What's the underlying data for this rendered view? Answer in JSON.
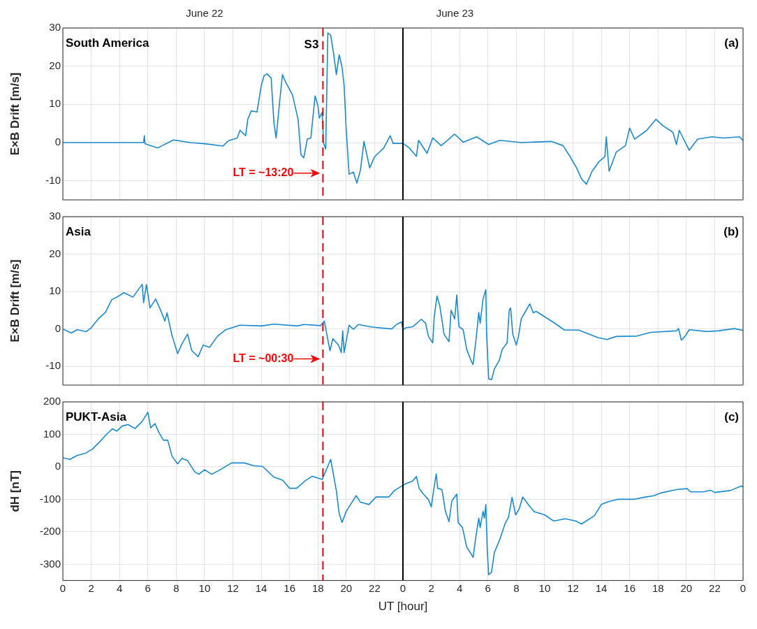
{
  "chart_data": [
    {
      "type": "line",
      "title": "South America",
      "ylabel": "E×B Drift [m/s]",
      "color": "#1a8ad0",
      "x": [
        "--06-22T00:00",
        "--06-22T05:42",
        "--06-22T05:45",
        "--06-22T05:48",
        "--06-22T06:42",
        "--06-22T07:48",
        "--06-22T09:00",
        "--06-22T10:00",
        "--06-22T11:18",
        "--06-22T11:42",
        "--06-22T12:18",
        "--06-22T12:30",
        "--06-22T12:54",
        "--06-22T13:03",
        "--06-22T13:18",
        "--06-22T13:42",
        "--06-22T14:00",
        "--06-22T14:12",
        "--06-22T14:24",
        "--06-22T14:42",
        "--06-22T14:54",
        "--06-22T15:03",
        "--06-22T15:18",
        "--06-22T15:30",
        "--06-22T15:42",
        "--06-22T16:12",
        "--06-22T16:36",
        "--06-22T16:48",
        "--06-22T17:00",
        "--06-22T17:15",
        "--06-22T17:30",
        "--06-22T17:48",
        "--06-22T18:00",
        "--06-22T18:06",
        "--06-22T18:18",
        "--06-22T18:24",
        "--06-22T18:33",
        "--06-22T18:42",
        "--06-22T18:54",
        "--06-22T19:06",
        "--06-22T19:18",
        "--06-22T19:30",
        "--06-22T19:42",
        "--06-22T19:51",
        "--06-22T20:00",
        "--06-22T20:12",
        "--06-22T20:30",
        "--06-22T20:45",
        "--06-22T21:00",
        "--06-22T21:15",
        "--06-22T21:39",
        "--06-22T22:00",
        "--06-22T22:39",
        "--06-22T23:06",
        "--06-22T23:18",
        "--06-23T00:00",
        "--06-23T00:27",
        "--06-23T00:57",
        "--06-23T01:06",
        "--06-23T01:42",
        "--06-23T02:06",
        "--06-23T02:42",
        "--06-23T03:39",
        "--06-23T04:15",
        "--06-23T05:12",
        "--06-23T06:03",
        "--06-23T06:51",
        "--06-23T08:21",
        "--06-23T10:27",
        "--06-23T11:18",
        "--06-23T11:48",
        "--06-23T12:15",
        "--06-23T12:36",
        "--06-23T12:57",
        "--06-23T13:21",
        "--06-23T13:51",
        "--06-23T14:15",
        "--06-23T14:21",
        "--06-23T14:33",
        "--06-23T15:03",
        "--06-23T15:42",
        "--06-23T16:00",
        "--06-23T16:21",
        "--06-23T17:12",
        "--06-23T17:51",
        "--06-23T18:21",
        "--06-23T19:03",
        "--06-23T19:18",
        "--06-23T19:30",
        "--06-23T20:12",
        "--06-23T20:48",
        "--06-23T21:48",
        "--06-23T22:36",
        "--06-23T23:45",
        "--06-24T00:00"
      ],
      "values": [
        0,
        0,
        1.8,
        -0.3,
        -1.4,
        0.7,
        0,
        -0.3,
        -0.9,
        0.5,
        1.2,
        3.2,
        1.8,
        6.1,
        8.3,
        8,
        14.9,
        17.5,
        18,
        16.9,
        5,
        1.2,
        10.8,
        17.8,
        16,
        12.5,
        6.1,
        -3.1,
        -4,
        0.9,
        1.2,
        12.2,
        9.6,
        6.4,
        7.9,
        -0.2,
        -1.7,
        28.7,
        28.1,
        23.5,
        17.8,
        23,
        19.8,
        14.9,
        3.2,
        -8.3,
        -7.7,
        -10.6,
        -7.2,
        0.3,
        -6.6,
        -3.7,
        -1.4,
        1.8,
        -0.2,
        -0.2,
        -1.4,
        -3.6,
        0.6,
        -2.8,
        1.2,
        -0.8,
        2.2,
        0.1,
        1.5,
        -0.5,
        0.6,
        0,
        0.3,
        -0.8,
        -3.7,
        -6.6,
        -9.5,
        -10.9,
        -7.5,
        -4.9,
        -3.7,
        1.5,
        -7.5,
        -2.5,
        -0.8,
        3.8,
        0.9,
        3.2,
        6.1,
        4.4,
        2.7,
        -0.5,
        3.2,
        -2,
        0.9,
        1.5,
        1.2,
        1.5,
        0.5
      ],
      "xlim": [
        "--06-22T00:00",
        "--06-24T00:00"
      ],
      "xticks": [
        {
          "value": "--06-22T00:00",
          "label": null
        },
        {
          "value": "--06-22T02:00",
          "label": null
        },
        {
          "value": "--06-22T04:00",
          "label": null
        },
        {
          "value": "--06-22T06:00",
          "label": null
        },
        {
          "value": "--06-22T08:00",
          "label": null
        },
        {
          "value": "--06-22T10:00",
          "label": null
        },
        {
          "value": "--06-22T12:00",
          "label": null
        },
        {
          "value": "--06-22T14:00",
          "label": null
        },
        {
          "value": "--06-22T16:00",
          "label": null
        },
        {
          "value": "--06-22T18:00",
          "label": null
        },
        {
          "value": "--06-22T20:00",
          "label": null
        },
        {
          "value": "--06-22T22:00",
          "label": null
        },
        {
          "value": "--06-23T00:00",
          "label": null
        },
        {
          "value": "--06-23T02:00",
          "label": null
        },
        {
          "value": "--06-23T04:00",
          "label": null
        },
        {
          "value": "--06-23T06:00",
          "label": null
        },
        {
          "value": "--06-23T08:00",
          "label": null
        },
        {
          "value": "--06-23T10:00",
          "label": null
        },
        {
          "value": "--06-23T12:00",
          "label": null
        },
        {
          "value": "--06-23T14:00",
          "label": null
        },
        {
          "value": "--06-23T16:00",
          "label": null
        },
        {
          "value": "--06-23T18:00",
          "label": null
        },
        {
          "value": "--06-23T20:00",
          "label": null
        },
        {
          "value": "--06-23T22:00",
          "label": null
        },
        {
          "value": "--06-24T00:00",
          "label": null
        }
      ],
      "x2lim": [
        "--06-22T00:00",
        "--06-24T00:00"
      ],
      "x2ticks": [
        {
          "value": "--06-22T10:00",
          "label": "June 22"
        },
        {
          "value": "--06-23T03:40",
          "label": "June 23"
        }
      ],
      "ylim": [
        -15,
        30
      ],
      "yticks": [
        -10,
        0,
        10,
        20,
        30
      ],
      "ref_lines": [
        {
          "axis": "x",
          "value": "--06-22T18:21",
          "color": "#ff0000",
          "line_style": "dashed"
        },
        {
          "axis": "x",
          "value": "--06-23T00:00",
          "color": "#000000",
          "line_style": "solid"
        }
      ],
      "annotations": [
        "(a)",
        "S3",
        {
          "text": "LT = ~13:20",
          "x": "--06-22T18:21",
          "y": -8
        }
      ],
      "grid": true,
      "tick_labels": "y"
    },
    {
      "type": "line",
      "title": "Asia",
      "ylabel": "E×B Drift [m/s]",
      "color": "#1a8ad0",
      "x": [
        "--06-22T00:00",
        "--06-22T00:36",
        "--06-22T01:00",
        "--06-22T01:39",
        "--06-22T02:00",
        "--06-22T02:30",
        "--06-22T03:00",
        "--06-22T03:27",
        "--06-22T03:57",
        "--06-22T04:18",
        "--06-22T04:57",
        "--06-22T05:30",
        "--06-22T05:36",
        "--06-22T05:42",
        "--06-22T05:54",
        "--06-22T06:09",
        "--06-22T06:33",
        "--06-22T06:54",
        "--06-22T07:12",
        "--06-22T07:21",
        "--06-22T07:42",
        "--06-22T08:06",
        "--06-22T08:24",
        "--06-22T08:48",
        "--06-22T09:06",
        "--06-22T09:33",
        "--06-22T09:54",
        "--06-22T10:21",
        "--06-22T10:54",
        "--06-22T11:30",
        "--06-22T12:30",
        "--06-22T14:00",
        "--06-22T14:54",
        "--06-22T16:33",
        "--06-22T17:00",
        "--06-22T18:12",
        "--06-22T18:27",
        "--06-22T18:51",
        "--06-22T19:03",
        "--06-22T19:27",
        "--06-22T19:39",
        "--06-22T19:45",
        "--06-22T19:51",
        "--06-22T20:12",
        "--06-22T20:30",
        "--06-22T20:51",
        "--06-22T21:48",
        "--06-22T23:12",
        "--06-22T23:33",
        "--06-22T23:54",
        "--06-23T00:00",
        "--06-23T00:12",
        "--06-23T00:42",
        "--06-23T01:18",
        "--06-23T01:36",
        "--06-23T01:48",
        "--06-23T02:06",
        "--06-23T02:12",
        "--06-23T02:24",
        "--06-23T02:36",
        "--06-23T02:54",
        "--06-23T03:15",
        "--06-23T03:24",
        "--06-23T03:39",
        "--06-23T03:48",
        "--06-23T03:57",
        "--06-23T04:15",
        "--06-23T04:30",
        "--06-23T04:48",
        "--06-23T04:57",
        "--06-23T05:09",
        "--06-23T05:21",
        "--06-23T05:27",
        "--06-23T05:39",
        "--06-23T05:51",
        "--06-23T05:54",
        "--06-23T05:57",
        "--06-23T06:03",
        "--06-23T06:15",
        "--06-23T06:27",
        "--06-23T06:48",
        "--06-23T07:00",
        "--06-23T07:21",
        "--06-23T07:30",
        "--06-23T07:36",
        "--06-23T07:45",
        "--06-23T08:00",
        "--06-23T08:09",
        "--06-23T08:21",
        "--06-23T08:39",
        "--06-23T08:57",
        "--06-23T09:12",
        "--06-23T09:24",
        "--06-23T10:36",
        "--06-23T11:24",
        "--06-23T12:24",
        "--06-23T13:45",
        "--06-23T14:24",
        "--06-23T15:03",
        "--06-23T16:30",
        "--06-23T17:30",
        "--06-23T19:18",
        "--06-23T19:27",
        "--06-23T19:39",
        "--06-23T19:54",
        "--06-23T20:12",
        "--06-23T21:27",
        "--06-23T22:15",
        "--06-23T23:24",
        "--06-24T00:00"
      ],
      "values": [
        0,
        -1.1,
        -0.2,
        -0.7,
        0.3,
        2.7,
        4.4,
        7.8,
        8.8,
        9.7,
        8.5,
        11.4,
        11.9,
        7.0,
        11.9,
        5.6,
        8.0,
        5,
        2.1,
        4.3,
        -1.7,
        -6.6,
        -4,
        -1.4,
        -5.8,
        -7.4,
        -4.3,
        -4.9,
        -2,
        -0.2,
        1,
        0.8,
        1.3,
        0.8,
        1.2,
        0.9,
        2.1,
        -5.8,
        -2.6,
        -4.3,
        -6.3,
        -0.5,
        -6.3,
        1,
        -0.1,
        1.2,
        0.5,
        0,
        1.2,
        1.9,
        -0.2,
        0.3,
        0.6,
        2.6,
        1.5,
        -2,
        -3.7,
        3,
        8.8,
        6.2,
        -1.4,
        -3.4,
        5,
        2.7,
        9.1,
        0.6,
        -0.2,
        -5.5,
        -8.4,
        -9.5,
        -3.1,
        4.4,
        1.5,
        7.9,
        10.5,
        -0.8,
        -5.5,
        -13.3,
        -13.6,
        -10.7,
        -8.4,
        -5.5,
        -3.7,
        5,
        5.6,
        -1.4,
        -4.3,
        -2,
        2.7,
        4.7,
        6.7,
        4.3,
        4.7,
        1.8,
        -0.3,
        -0.3,
        -2.3,
        -2.8,
        -2,
        -1.9,
        -0.9,
        -0.5,
        0.1,
        -3,
        -2,
        -0.2,
        -0.7,
        -0.5,
        0.1,
        -0.4
      ],
      "xlim": [
        "--06-22T00:00",
        "--06-24T00:00"
      ],
      "xticks": [
        {
          "value": "--06-22T00:00",
          "label": null
        },
        {
          "value": "--06-22T02:00",
          "label": null
        },
        {
          "value": "--06-22T04:00",
          "label": null
        },
        {
          "value": "--06-22T06:00",
          "label": null
        },
        {
          "value": "--06-22T08:00",
          "label": null
        },
        {
          "value": "--06-22T10:00",
          "label": null
        },
        {
          "value": "--06-22T12:00",
          "label": null
        },
        {
          "value": "--06-22T14:00",
          "label": null
        },
        {
          "value": "--06-22T16:00",
          "label": null
        },
        {
          "value": "--06-22T18:00",
          "label": null
        },
        {
          "value": "--06-22T20:00",
          "label": null
        },
        {
          "value": "--06-22T22:00",
          "label": null
        },
        {
          "value": "--06-23T00:00",
          "label": null
        },
        {
          "value": "--06-23T02:00",
          "label": null
        },
        {
          "value": "--06-23T04:00",
          "label": null
        },
        {
          "value": "--06-23T06:00",
          "label": null
        },
        {
          "value": "--06-23T08:00",
          "label": null
        },
        {
          "value": "--06-23T10:00",
          "label": null
        },
        {
          "value": "--06-23T12:00",
          "label": null
        },
        {
          "value": "--06-23T14:00",
          "label": null
        },
        {
          "value": "--06-23T16:00",
          "label": null
        },
        {
          "value": "--06-23T18:00",
          "label": null
        },
        {
          "value": "--06-23T20:00",
          "label": null
        },
        {
          "value": "--06-23T22:00",
          "label": null
        },
        {
          "value": "--06-24T00:00",
          "label": null
        }
      ],
      "ylim": [
        -15,
        30
      ],
      "yticks": [
        -10,
        0,
        10,
        20,
        30
      ],
      "ref_lines": [
        {
          "axis": "x",
          "value": "--06-22T18:21",
          "color": "#ff0000",
          "line_style": "dashed"
        },
        {
          "axis": "x",
          "value": "--06-23T00:00",
          "color": "#000000",
          "line_style": "solid"
        }
      ],
      "annotations": [
        "(b)",
        {
          "text": "LT = ~00:30",
          "x": "--06-22T18:21",
          "y": -8
        }
      ],
      "grid": true,
      "tick_labels": "y"
    },
    {
      "type": "line",
      "title": "PUKT-Asia",
      "ylabel": "dH [nT]",
      "xlabel": "UT [hour]",
      "color": "#1a8ad0",
      "x": [
        "--06-22T00:00",
        "--06-22T00:30",
        "--06-22T01:00",
        "--06-22T01:36",
        "--06-22T02:06",
        "--06-22T02:36",
        "--06-22T03:06",
        "--06-22T03:30",
        "--06-22T03:48",
        "--06-22T04:12",
        "--06-22T04:36",
        "--06-22T05:06",
        "--06-22T05:36",
        "--06-22T05:48",
        "--06-22T06:00",
        "--06-22T06:12",
        "--06-22T06:30",
        "--06-22T06:48",
        "--06-22T07:06",
        "--06-22T07:24",
        "--06-22T07:42",
        "--06-22T08:06",
        "--06-22T08:24",
        "--06-22T08:48",
        "--06-22T09:18",
        "--06-22T09:36",
        "--06-22T10:00",
        "--06-22T10:30",
        "--06-22T11:06",
        "--06-22T11:54",
        "--06-22T12:48",
        "--06-22T13:30",
        "--06-22T14:06",
        "--06-22T14:54",
        "--06-22T15:30",
        "--06-22T16:00",
        "--06-22T16:30",
        "--06-22T17:06",
        "--06-22T17:36",
        "--06-22T18:18",
        "--06-22T18:54",
        "--06-22T19:18",
        "--06-22T19:30",
        "--06-22T19:42",
        "--06-22T20:00",
        "--06-22T20:18",
        "--06-22T20:42",
        "--06-22T21:00",
        "--06-22T21:36",
        "--06-22T22:06",
        "--06-22T23:00",
        "--06-22T23:24",
        "--06-23T00:00",
        "--06-23T00:12",
        "--06-23T00:39",
        "--06-23T00:57",
        "--06-23T01:09",
        "--06-23T01:27",
        "--06-23T01:48",
        "--06-23T02:00",
        "--06-23T02:12",
        "--06-23T02:21",
        "--06-23T02:27",
        "--06-23T02:45",
        "--06-23T03:00",
        "--06-23T03:15",
        "--06-23T03:27",
        "--06-23T03:48",
        "--06-23T03:54",
        "--06-23T04:12",
        "--06-23T04:30",
        "--06-23T04:45",
        "--06-23T04:57",
        "--06-23T05:09",
        "--06-23T05:21",
        "--06-23T05:27",
        "--06-23T05:39",
        "--06-23T05:45",
        "--06-23T05:51",
        "--06-23T05:57",
        "--06-23T06:03",
        "--06-23T06:15",
        "--06-23T06:27",
        "--06-23T06:51",
        "--06-23T07:12",
        "--06-23T07:27",
        "--06-23T07:42",
        "--06-23T07:57",
        "--06-23T08:12",
        "--06-23T08:27",
        "--06-23T08:54",
        "--06-23T09:15",
        "--06-23T10:00",
        "--06-23T10:39",
        "--06-23T11:27",
        "--06-23T12:12",
        "--06-23T12:36",
        "--06-23T13:30",
        "--06-23T14:00",
        "--06-23T14:30",
        "--06-23T15:09",
        "--06-23T16:18",
        "--06-23T17:00",
        "--06-23T17:42",
        "--06-23T18:15",
        "--06-23T19:18",
        "--06-23T20:03",
        "--06-23T20:18",
        "--06-23T21:12",
        "--06-23T21:42",
        "--06-23T22:00",
        "--06-23T23:06",
        "--06-23T23:54",
        "--06-24T00:00"
      ],
      "values": [
        28,
        23,
        35,
        42,
        55,
        77,
        101,
        117,
        110,
        126,
        130,
        118,
        140,
        154,
        168,
        120,
        133,
        104,
        82,
        82,
        33,
        9,
        26,
        19,
        -15,
        -23,
        -9,
        -23,
        -9,
        12,
        12,
        3,
        1,
        -32,
        -41,
        -66,
        -66,
        -43,
        -29,
        -39,
        23,
        -73,
        -144,
        -171,
        -137,
        -116,
        -89,
        -109,
        -116,
        -93,
        -93,
        -73,
        -57,
        -52,
        -45,
        -30,
        -67,
        -84,
        -101,
        -123,
        -62,
        -22,
        -66,
        -70,
        -137,
        -169,
        -105,
        -84,
        -172,
        -187,
        -247,
        -264,
        -279,
        -214,
        -158,
        -187,
        -137,
        -158,
        -116,
        -257,
        -332,
        -325,
        -264,
        -222,
        -176,
        -155,
        -94,
        -148,
        -130,
        -93,
        -119,
        -138,
        -148,
        -167,
        -160,
        -167,
        -176,
        -151,
        -116,
        -107,
        -100,
        -100,
        -94,
        -89,
        -80,
        -70,
        -67,
        -77,
        -77,
        -72,
        -79,
        -73,
        -59,
        -62
      ],
      "xlim": [
        "--06-22T00:00",
        "--06-24T00:00"
      ],
      "xticks": [
        {
          "value": "--06-22T00:00",
          "label": "0"
        },
        {
          "value": "--06-22T02:00",
          "label": "2"
        },
        {
          "value": "--06-22T04:00",
          "label": "4"
        },
        {
          "value": "--06-22T06:00",
          "label": "6"
        },
        {
          "value": "--06-22T08:00",
          "label": "8"
        },
        {
          "value": "--06-22T10:00",
          "label": "10"
        },
        {
          "value": "--06-22T12:00",
          "label": "12"
        },
        {
          "value": "--06-22T14:00",
          "label": "14"
        },
        {
          "value": "--06-22T16:00",
          "label": "16"
        },
        {
          "value": "--06-22T18:00",
          "label": "18"
        },
        {
          "value": "--06-22T20:00",
          "label": "20"
        },
        {
          "value": "--06-22T22:00",
          "label": "22"
        },
        {
          "value": "--06-23T00:00",
          "label": "0"
        },
        {
          "value": "--06-23T02:00",
          "label": "2"
        },
        {
          "value": "--06-23T04:00",
          "label": "4"
        },
        {
          "value": "--06-23T06:00",
          "label": "6"
        },
        {
          "value": "--06-23T08:00",
          "label": "8"
        },
        {
          "value": "--06-23T10:00",
          "label": "10"
        },
        {
          "value": "--06-23T12:00",
          "label": "12"
        },
        {
          "value": "--06-23T14:00",
          "label": "14"
        },
        {
          "value": "--06-23T16:00",
          "label": "16"
        },
        {
          "value": "--06-23T18:00",
          "label": "18"
        },
        {
          "value": "--06-23T20:00",
          "label": "20"
        },
        {
          "value": "--06-23T22:00",
          "label": "22"
        },
        {
          "value": "--06-24T00:00",
          "label": "0"
        }
      ],
      "ylim": [
        -350,
        200
      ],
      "yticks": [
        -300,
        -200,
        -100,
        0,
        100,
        200
      ],
      "ref_lines": [
        {
          "axis": "x",
          "value": "--06-22T18:21",
          "color": "#ff0000",
          "line_style": "dashed"
        },
        {
          "axis": "x",
          "value": "--06-23T00:00",
          "color": "#000000",
          "line_style": "solid"
        }
      ],
      "annotations": [
        "(c)"
      ],
      "grid": true
    }
  ]
}
